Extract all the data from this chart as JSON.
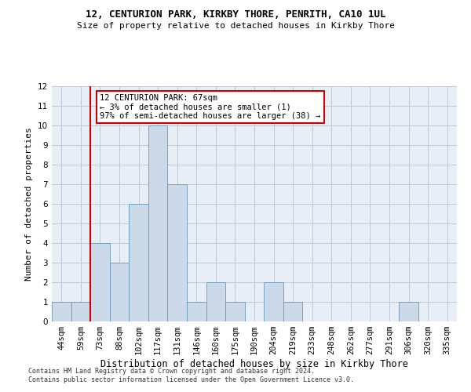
{
  "title": "12, CENTURION PARK, KIRKBY THORE, PENRITH, CA10 1UL",
  "subtitle": "Size of property relative to detached houses in Kirkby Thore",
  "xlabel": "Distribution of detached houses by size in Kirkby Thore",
  "ylabel": "Number of detached properties",
  "categories": [
    "44sqm",
    "59sqm",
    "73sqm",
    "88sqm",
    "102sqm",
    "117sqm",
    "131sqm",
    "146sqm",
    "160sqm",
    "175sqm",
    "190sqm",
    "204sqm",
    "219sqm",
    "233sqm",
    "248sqm",
    "262sqm",
    "277sqm",
    "291sqm",
    "306sqm",
    "320sqm",
    "335sqm"
  ],
  "values": [
    1,
    1,
    4,
    3,
    6,
    10,
    7,
    1,
    2,
    1,
    0,
    2,
    1,
    0,
    0,
    0,
    0,
    0,
    1,
    0,
    0
  ],
  "bar_color": "#ccd9e8",
  "bar_edge_color": "#6699bb",
  "ylim": [
    0,
    12
  ],
  "yticks": [
    0,
    1,
    2,
    3,
    4,
    5,
    6,
    7,
    8,
    9,
    10,
    11,
    12
  ],
  "ref_line_x": 1.5,
  "ref_line_color": "#cc0000",
  "annotation_text": "12 CENTURION PARK: 67sqm\n← 3% of detached houses are smaller (1)\n97% of semi-detached houses are larger (38) →",
  "annotation_box_color": "#cc0000",
  "footer1": "Contains HM Land Registry data © Crown copyright and database right 2024.",
  "footer2": "Contains public sector information licensed under the Open Government Licence v3.0.",
  "bg_color": "#e8eef5",
  "grid_color": "#c0c8d4",
  "title_fontsize": 9,
  "subtitle_fontsize": 8,
  "ylabel_fontsize": 8,
  "xlabel_fontsize": 8.5,
  "tick_fontsize": 7.5,
  "footer_fontsize": 6
}
